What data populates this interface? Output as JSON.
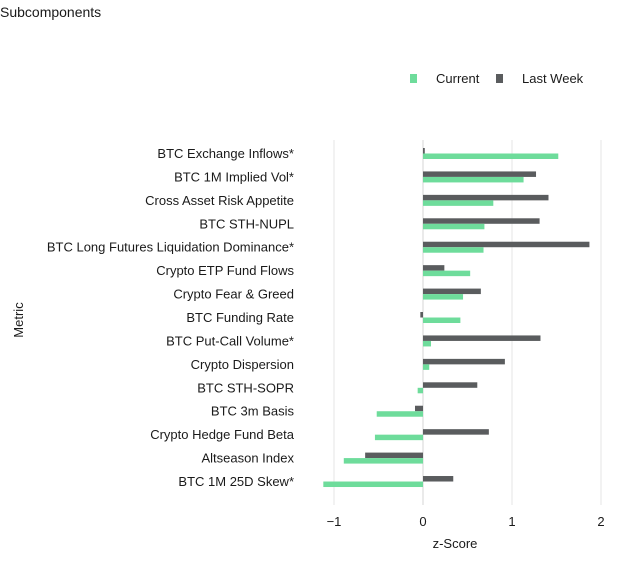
{
  "chart_data": {
    "type": "bar",
    "orientation": "horizontal",
    "title": "Subcomponents",
    "xlabel": "z-Score",
    "ylabel": "Metric",
    "xlim": [
      -1.12,
      2.05
    ],
    "xticks": [
      -1,
      0,
      1,
      2
    ],
    "grid": "vertical",
    "legend": "top-right",
    "categories": [
      "BTC Exchange Inflows*",
      "BTC 1M Implied Vol*",
      "Cross Asset Risk Appetite",
      "BTC STH-NUPL",
      "BTC Long Futures Liquidation Dominance*",
      "Crypto ETP Fund Flows",
      "Crypto Fear & Greed",
      "BTC Funding Rate",
      "BTC Put-Call Volume*",
      "Crypto Dispersion",
      "BTC STH-SOPR",
      "BTC 3m Basis",
      "Crypto Hedge Fund Beta",
      "Altseason Index",
      "BTC 1M 25D Skew*"
    ],
    "series": [
      {
        "name": "Last Week",
        "color": "#5a5c5e",
        "values": [
          0.02,
          1.27,
          1.41,
          1.31,
          1.87,
          0.24,
          0.65,
          -0.03,
          1.32,
          0.92,
          0.61,
          -0.09,
          0.74,
          -0.65,
          0.34
        ]
      },
      {
        "name": "Current",
        "color": "#6edc9b",
        "values": [
          1.52,
          1.13,
          0.79,
          0.69,
          0.68,
          0.53,
          0.45,
          0.42,
          0.09,
          0.07,
          -0.06,
          -0.52,
          -0.54,
          -0.89,
          -1.12
        ]
      }
    ]
  }
}
